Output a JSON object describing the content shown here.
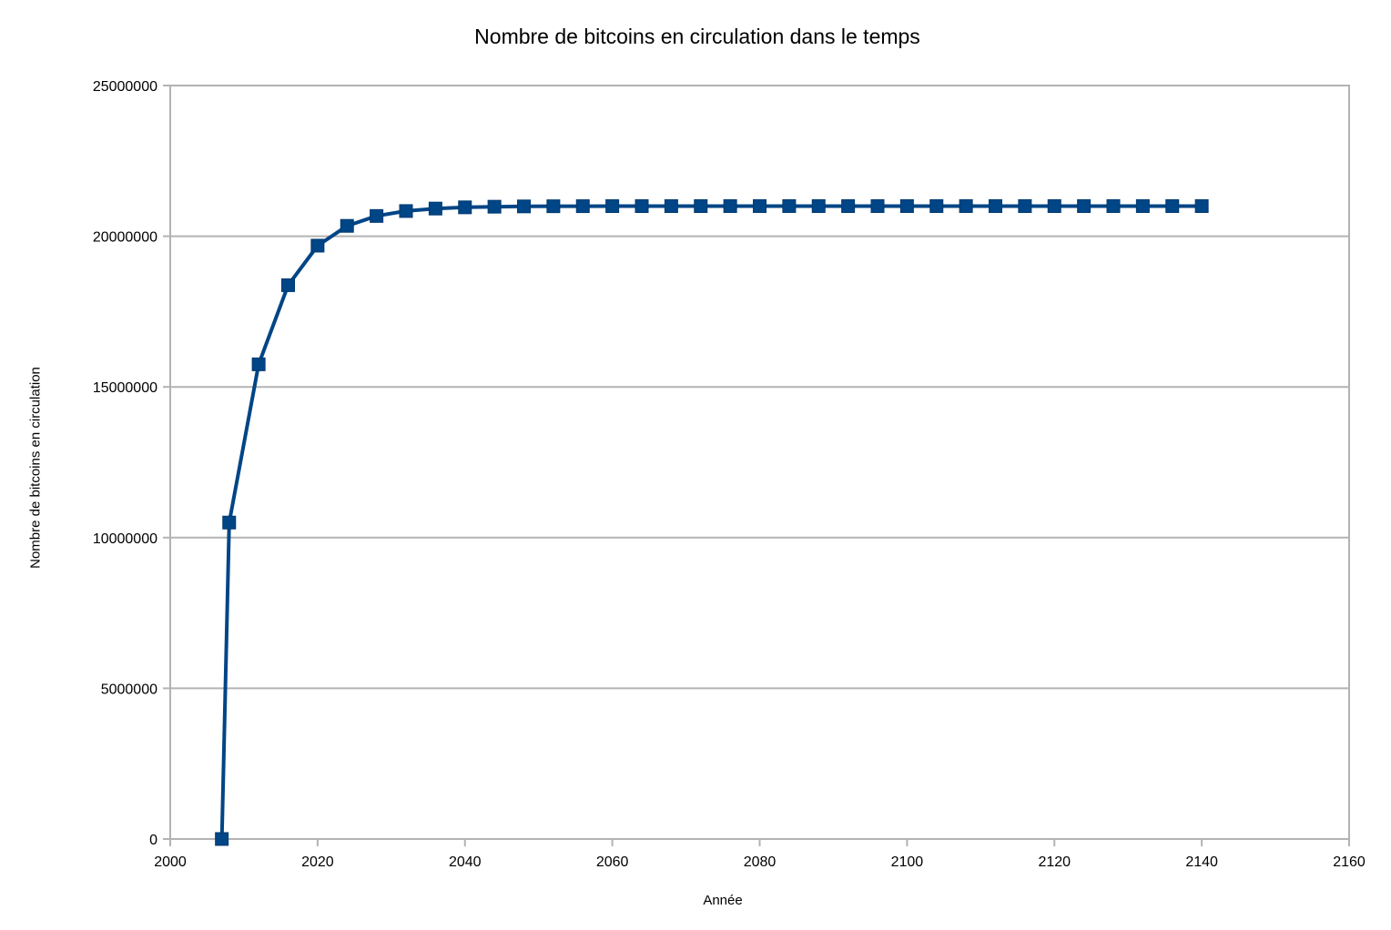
{
  "chart_data": {
    "type": "line",
    "title": "Nombre de bitcoins en circulation dans le temps",
    "xlabel": "Année",
    "ylabel": "Nombre de bitcoins en circulation",
    "xlim": [
      2000,
      2160
    ],
    "ylim": [
      0,
      25000000
    ],
    "x_ticks": [
      "2000",
      "2020",
      "2040",
      "2060",
      "2080",
      "2100",
      "2120",
      "2140",
      "2160"
    ],
    "y_ticks": [
      "0",
      "5000000",
      "10000000",
      "15000000",
      "20000000",
      "25000000"
    ],
    "grid": "horizontal",
    "legend": "none",
    "series_color": "#004586",
    "marker": "square",
    "series": [
      {
        "x": [
          2007,
          2008,
          2012,
          2016,
          2020,
          2024,
          2028,
          2032,
          2036,
          2040,
          2044,
          2048,
          2052,
          2056,
          2060,
          2064,
          2068,
          2072,
          2076,
          2080,
          2084,
          2088,
          2092,
          2096,
          2100,
          2104,
          2108,
          2112,
          2116,
          2120,
          2124,
          2128,
          2132,
          2136,
          2140
        ],
        "values": [
          0,
          10500000,
          15750000,
          18375000,
          19687500,
          20343750,
          20671875,
          20835938,
          20917969,
          20958984,
          20979492,
          20989746,
          20994873,
          20997437,
          20998718,
          20999359,
          20999680,
          20999840,
          20999920,
          20999960,
          20999980,
          20999990,
          20999995,
          20999997,
          20999999,
          20999999,
          21000000,
          21000000,
          21000000,
          21000000,
          21000000,
          21000000,
          21000000,
          21000000,
          21000000
        ]
      }
    ]
  }
}
